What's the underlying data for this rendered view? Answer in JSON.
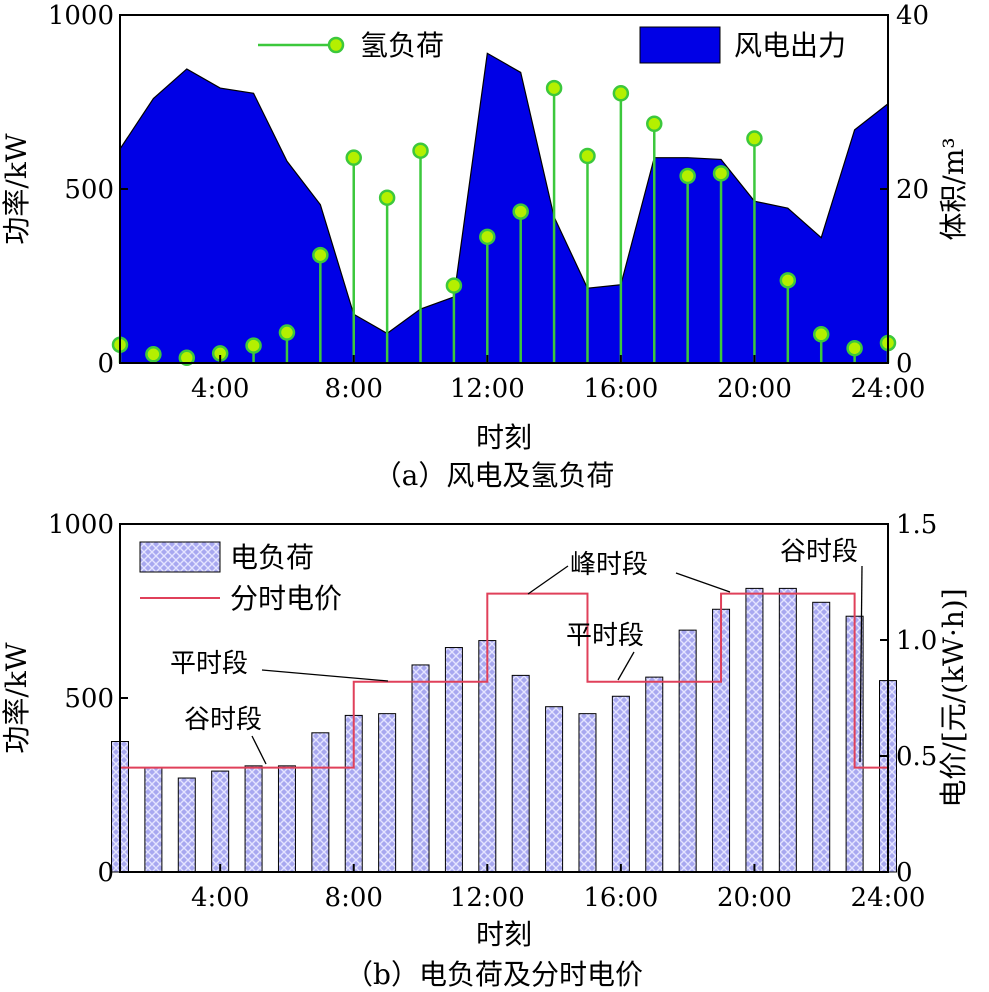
{
  "chart_data": [
    {
      "type": "area",
      "caption": "（a）风电及氢负荷",
      "xlabel": "时刻",
      "ylabel_left": "功率/kW",
      "ylabel_right": "体积/m³",
      "xlim": [
        1,
        24
      ],
      "ylim_left": [
        0,
        1000
      ],
      "ylim_right": [
        0,
        40
      ],
      "x_ticks": [
        {
          "value": 4,
          "label": "4:00"
        },
        {
          "value": 8,
          "label": "8:00"
        },
        {
          "value": 12,
          "label": "12:00"
        },
        {
          "value": 16,
          "label": "16:00"
        },
        {
          "value": 20,
          "label": "20:00"
        },
        {
          "value": 24,
          "label": "24:00"
        }
      ],
      "y_ticks_left": [
        {
          "value": 0,
          "label": "0"
        },
        {
          "value": 500,
          "label": "500"
        },
        {
          "value": 1000,
          "label": "1000"
        }
      ],
      "y_ticks_right": [
        {
          "value": 0,
          "label": "0"
        },
        {
          "value": 20,
          "label": "20"
        },
        {
          "value": 40,
          "label": "40"
        }
      ],
      "x": [
        1,
        2,
        3,
        4,
        5,
        6,
        7,
        8,
        9,
        10,
        11,
        12,
        13,
        14,
        15,
        16,
        17,
        18,
        19,
        20,
        21,
        22,
        23,
        24
      ],
      "series": [
        {
          "name": "风电出力",
          "kind": "area",
          "axis": "left",
          "color": "#0000e6",
          "x": [
            1,
            2,
            3,
            4,
            5,
            6,
            7,
            8,
            9,
            10,
            11,
            12,
            13,
            14,
            15,
            16,
            17,
            18,
            19,
            20,
            21,
            22,
            23,
            24
          ],
          "values": [
            615,
            760,
            845,
            790,
            775,
            580,
            455,
            140,
            85,
            155,
            190,
            890,
            835,
            420,
            215,
            225,
            590,
            590,
            585,
            465,
            445,
            360,
            670,
            745
          ]
        },
        {
          "name": "氢负荷",
          "kind": "stem",
          "axis": "right",
          "color": "#3cc83c",
          "marker_color": "#b4f000",
          "values": [
            2.1,
            1.0,
            0.6,
            1.1,
            2.0,
            3.5,
            12.4,
            23.6,
            19.0,
            24.4,
            8.9,
            14.5,
            17.4,
            31.6,
            23.8,
            31.0,
            27.5,
            21.5,
            21.8,
            25.8,
            9.5,
            3.3,
            1.7,
            2.3
          ]
        }
      ],
      "legend": [
        {
          "label": "氢负荷",
          "kind": "stem",
          "placement": "top-left"
        },
        {
          "label": "风电出力",
          "kind": "area",
          "placement": "top-right"
        }
      ]
    },
    {
      "type": "bar",
      "caption": "（b）电负荷及分时电价",
      "xlabel": "时刻",
      "ylabel_left": "功率/kW",
      "ylabel_right": "电价/[元/(kW·h)]",
      "xlim": [
        1,
        24
      ],
      "ylim_left": [
        0,
        1000
      ],
      "ylim_right": [
        0,
        1.5
      ],
      "x_ticks": [
        {
          "value": 4,
          "label": "4:00"
        },
        {
          "value": 8,
          "label": "8:00"
        },
        {
          "value": 12,
          "label": "12:00"
        },
        {
          "value": 16,
          "label": "16:00"
        },
        {
          "value": 20,
          "label": "20:00"
        },
        {
          "value": 24,
          "label": "24:00"
        }
      ],
      "y_ticks_left": [
        {
          "value": 0,
          "label": "0"
        },
        {
          "value": 500,
          "label": "500"
        },
        {
          "value": 1000,
          "label": "1000"
        }
      ],
      "y_ticks_right": [
        {
          "value": 0,
          "label": "0"
        },
        {
          "value": 0.5,
          "label": "0.5"
        },
        {
          "value": 1.0,
          "label": "1.0"
        },
        {
          "value": 1.5,
          "label": "1.5"
        }
      ],
      "x": [
        1,
        2,
        3,
        4,
        5,
        6,
        7,
        8,
        9,
        10,
        11,
        12,
        13,
        14,
        15,
        16,
        17,
        18,
        19,
        20,
        21,
        22,
        23,
        24
      ],
      "series": [
        {
          "name": "电负荷",
          "kind": "bar",
          "axis": "left",
          "color": "#b0b0f2",
          "values": [
            375,
            300,
            270,
            290,
            305,
            305,
            400,
            450,
            455,
            595,
            645,
            665,
            565,
            475,
            455,
            505,
            560,
            695,
            755,
            815,
            815,
            775,
            735,
            550
          ]
        },
        {
          "name": "分时电价",
          "kind": "step",
          "axis": "right",
          "color": "#e0405a",
          "x": [
            1,
            8,
            8,
            12,
            12,
            15,
            15,
            19,
            19,
            23,
            23,
            24
          ],
          "values": [
            0.45,
            0.45,
            0.82,
            0.82,
            1.2,
            1.2,
            0.82,
            0.82,
            1.2,
            1.2,
            0.45,
            0.45
          ]
        }
      ],
      "annotations": [
        {
          "text": "峰时段",
          "target_x": 12.8,
          "target_y": 1.2
        },
        {
          "text": "峰时段",
          "target_x": 19.5,
          "target_y": 1.2
        },
        {
          "text": "平时段",
          "target_x": 9.0,
          "target_y": 0.82
        },
        {
          "text": "平时段",
          "target_x": 16.0,
          "target_y": 0.82
        },
        {
          "text": "谷时段",
          "target_x": 5.0,
          "target_y": 0.45
        },
        {
          "text": "谷时段",
          "target_x": 23.5,
          "target_y": 0.45
        }
      ],
      "legend": [
        {
          "label": "电负荷",
          "kind": "bar",
          "placement": "top-left"
        },
        {
          "label": "分时电价",
          "kind": "line",
          "placement": "top-left"
        }
      ]
    }
  ]
}
